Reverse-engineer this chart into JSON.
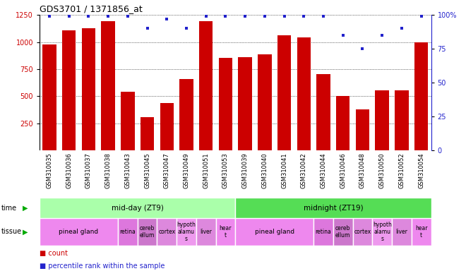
{
  "title": "GDS3701 / 1371856_at",
  "samples": [
    "GSM310035",
    "GSM310036",
    "GSM310037",
    "GSM310038",
    "GSM310043",
    "GSM310045",
    "GSM310047",
    "GSM310049",
    "GSM310051",
    "GSM310053",
    "GSM310039",
    "GSM310040",
    "GSM310041",
    "GSM310042",
    "GSM310044",
    "GSM310046",
    "GSM310048",
    "GSM310050",
    "GSM310052",
    "GSM310054"
  ],
  "counts": [
    975,
    1110,
    1130,
    1190,
    540,
    310,
    435,
    660,
    1195,
    855,
    860,
    885,
    1060,
    1040,
    705,
    500,
    380,
    555,
    555,
    1000
  ],
  "percentile": [
    99,
    99,
    99,
    99,
    99,
    90,
    97,
    90,
    99,
    99,
    99,
    99,
    99,
    99,
    99,
    85,
    75,
    85,
    90,
    99
  ],
  "ylim_left": [
    0,
    1250
  ],
  "ylim_right": [
    0,
    100
  ],
  "yticks_left": [
    250,
    500,
    750,
    1000,
    1250
  ],
  "yticks_right": [
    0,
    25,
    50,
    75,
    100
  ],
  "bar_color": "#cc0000",
  "dot_color": "#2222cc",
  "time_groups": [
    {
      "label": "mid-day (ZT9)",
      "start": 0,
      "end": 10,
      "color": "#aaffaa"
    },
    {
      "label": "midnight (ZT19)",
      "start": 10,
      "end": 20,
      "color": "#55dd55"
    }
  ],
  "tissue_groups": [
    {
      "label": "pineal gland",
      "start": 0,
      "end": 4,
      "color": "#ee88ee"
    },
    {
      "label": "retina",
      "start": 4,
      "end": 5,
      "color": "#dd77dd"
    },
    {
      "label": "cerebellum",
      "start": 5,
      "end": 6,
      "color": "#cc77cc"
    },
    {
      "label": "cortex",
      "start": 6,
      "end": 7,
      "color": "#dd88dd"
    },
    {
      "label": "hypothalamus",
      "start": 7,
      "end": 8,
      "color": "#ee99ee"
    },
    {
      "label": "liver",
      "start": 8,
      "end": 9,
      "color": "#dd88dd"
    },
    {
      "label": "heart",
      "start": 9,
      "end": 10,
      "color": "#ee88ee"
    },
    {
      "label": "pineal gland",
      "start": 10,
      "end": 14,
      "color": "#ee88ee"
    },
    {
      "label": "retina",
      "start": 14,
      "end": 15,
      "color": "#dd77dd"
    },
    {
      "label": "cerebellum",
      "start": 15,
      "end": 16,
      "color": "#cc77cc"
    },
    {
      "label": "cortex",
      "start": 16,
      "end": 17,
      "color": "#dd88dd"
    },
    {
      "label": "hypothalamus",
      "start": 17,
      "end": 18,
      "color": "#ee99ee"
    },
    {
      "label": "liver",
      "start": 18,
      "end": 19,
      "color": "#dd88dd"
    },
    {
      "label": "heart",
      "start": 19,
      "end": 20,
      "color": "#ee88ee"
    }
  ],
  "bg_color": "#ffffff",
  "tick_label_fontsize": 6.0,
  "bar_width": 0.7,
  "xlabel_gray": "#aaaaaa"
}
